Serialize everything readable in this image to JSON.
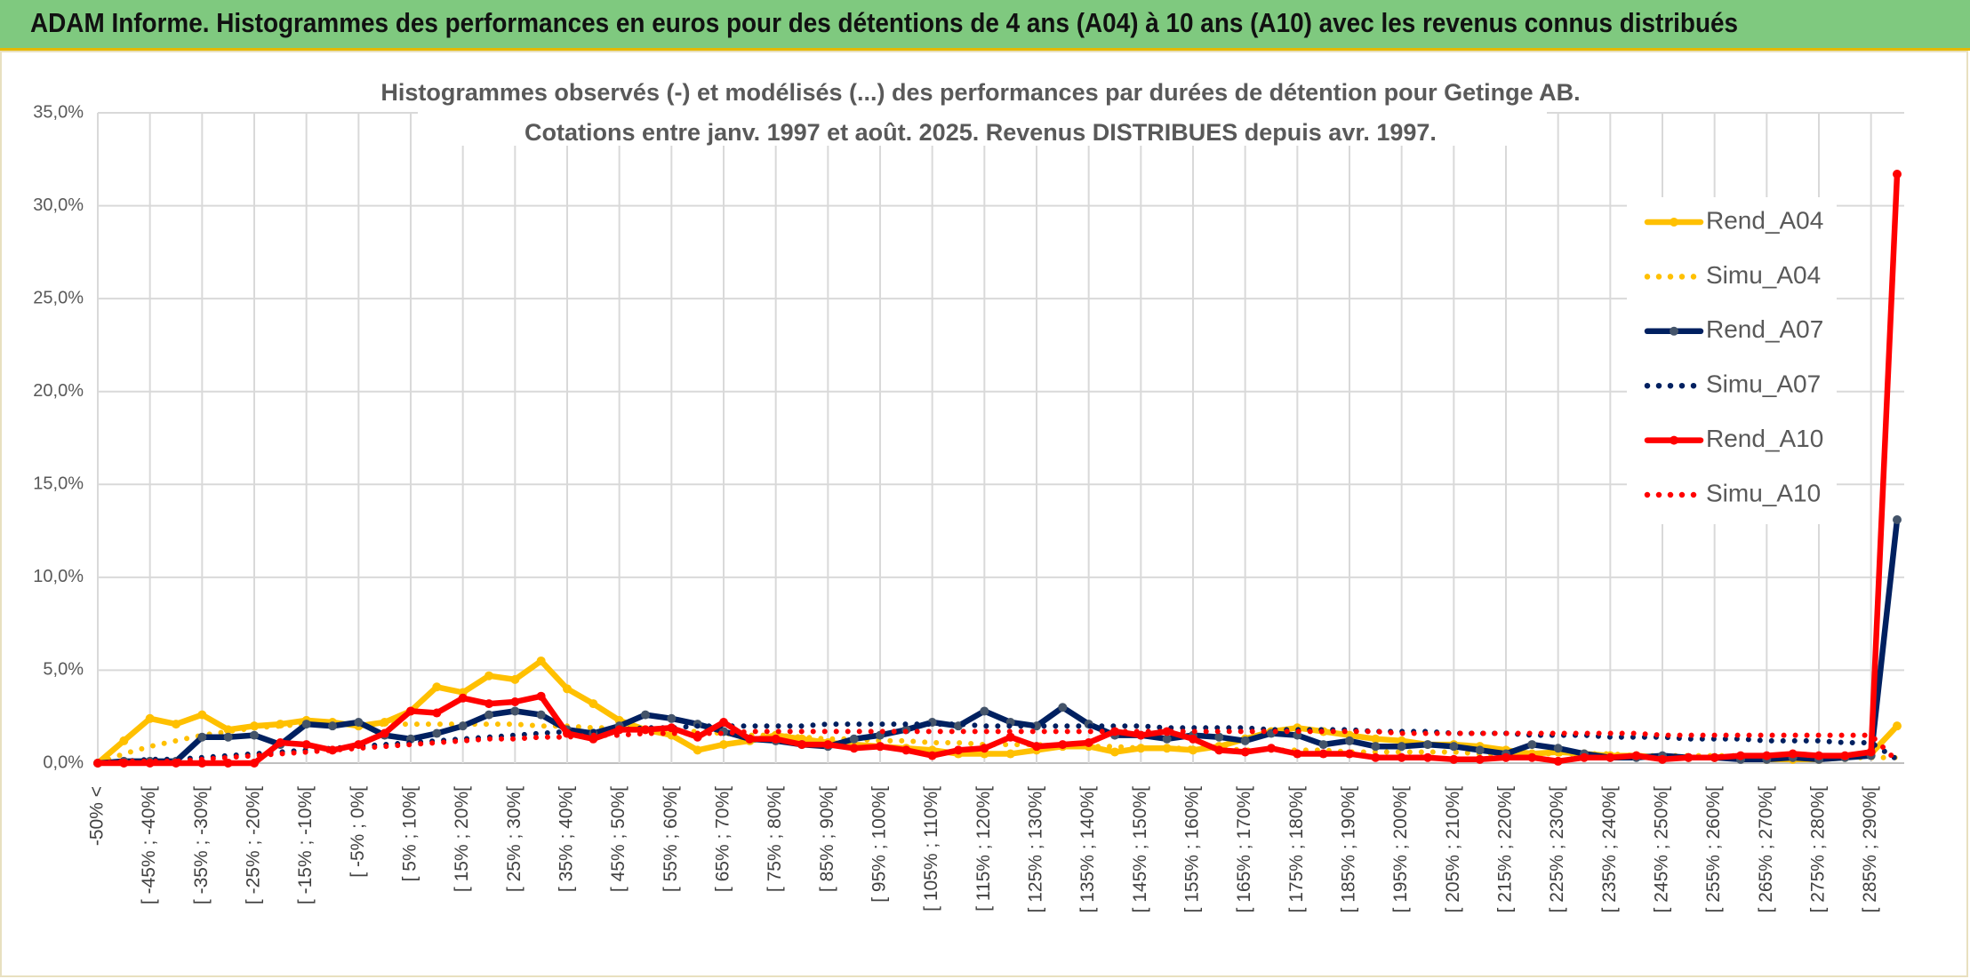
{
  "header": {
    "title": "ADAM Informe. Histogrammes des performances en euros pour des détentions de 4 ans (A04) à 10 ans (A10) avec les revenus connus distribués"
  },
  "chart_data": {
    "type": "line",
    "title": "Histogrammes observés (-) et modélisés (...) des performances par durées de détention pour Getinge AB.",
    "subtitle": "Cotations entre janv. 1997 et août. 2025. Revenus DISTRIBUES depuis avr. 1997.",
    "categories": [
      "-50% <",
      null,
      "[ -45% ; -40%[",
      null,
      "[ -35% ; -30%[",
      null,
      "[ -25% ; -20%[",
      null,
      "[ -15% ; -10%[",
      null,
      "[ -5% ; 0%[",
      null,
      "[ 5% ; 10%[",
      null,
      "[ 15% ; 20%[",
      null,
      "[ 25% ; 30%[",
      null,
      "[ 35% ; 40%[",
      null,
      "[ 45% ; 50%[",
      null,
      "[ 55% ; 60%[",
      null,
      "[ 65% ; 70%[",
      null,
      "[ 75% ; 80%[",
      null,
      "[ 85% ; 90%[",
      null,
      "[ 95% ; 100%[",
      null,
      "[ 105% ; 110%[",
      null,
      "[ 115% ; 120%[",
      null,
      "[ 125% ; 130%[",
      null,
      "[ 135% ; 140%[",
      null,
      "[ 145% ; 150%[",
      null,
      "[ 155% ; 160%[",
      null,
      "[ 165% ; 170%[",
      null,
      "[ 175% ; 180%[",
      null,
      "[ 185% ; 190%[",
      null,
      "[ 195% ; 200%[",
      null,
      "[ 205% ; 210%[",
      null,
      "[ 215% ; 220%[",
      null,
      "[ 225% ; 230%[",
      null,
      "[ 235% ; 240%[",
      null,
      "[ 245% ; 250%[",
      null,
      "[ 255% ; 260%[",
      null,
      "[ 265% ; 270%[",
      null,
      "[ 275% ; 280%[",
      null,
      "[ 285% ; 290%[",
      null
    ],
    "ylim": [
      0,
      35
    ],
    "yticks": [
      {
        "value": 0,
        "label": "0,0%"
      },
      {
        "value": 5,
        "label": "5,0%"
      },
      {
        "value": 10,
        "label": "10,0%"
      },
      {
        "value": 15,
        "label": "15,0%"
      },
      {
        "value": 20,
        "label": "20,0%"
      },
      {
        "value": 25,
        "label": "25,0%"
      },
      {
        "value": 30,
        "label": "30,0%"
      },
      {
        "value": 35,
        "label": "35,0%"
      }
    ],
    "grid": true,
    "legend": "right",
    "series": [
      {
        "name": "Rend_A04",
        "color": "#FFC000",
        "marker_color": "#FFC000",
        "style": "solid",
        "values": [
          0,
          1.2,
          2.4,
          2.1,
          2.6,
          1.8,
          2.0,
          2.1,
          2.3,
          2.2,
          2.0,
          2.2,
          2.8,
          4.1,
          3.8,
          4.7,
          4.5,
          5.5,
          4.0,
          3.2,
          2.3,
          1.8,
          1.5,
          0.7,
          1.0,
          1.2,
          1.5,
          1.3,
          1.1,
          1.0,
          0.9,
          0.8,
          0.7,
          0.5,
          0.5,
          0.5,
          0.7,
          0.9,
          0.9,
          0.6,
          0.8,
          0.8,
          0.7,
          0.9,
          1.3,
          1.7,
          1.9,
          1.7,
          1.5,
          1.3,
          1.2,
          1.0,
          1.0,
          0.9,
          0.7,
          0.5,
          0.6,
          0.5,
          0.4,
          0.4,
          0.3,
          0.3,
          0.3,
          0.3,
          0.2,
          0.2,
          0.2,
          0.3,
          0.5,
          2.0
        ]
      },
      {
        "name": "Simu_A04",
        "color": "#FFC000",
        "style": "dotted",
        "values": [
          0,
          0.5,
          0.9,
          1.2,
          1.5,
          1.7,
          1.9,
          2.0,
          2.1,
          2.1,
          2.1,
          2.1,
          2.1,
          2.1,
          2.1,
          2.1,
          2.1,
          2.0,
          2.0,
          1.9,
          1.9,
          1.8,
          1.7,
          1.7,
          1.6,
          1.5,
          1.5,
          1.4,
          1.3,
          1.3,
          1.2,
          1.2,
          1.1,
          1.1,
          1.0,
          1.0,
          1.0,
          0.9,
          0.9,
          0.9,
          0.8,
          0.8,
          0.8,
          0.8,
          0.7,
          0.7,
          0.7,
          0.7,
          0.6,
          0.6,
          0.6,
          0.6,
          0.6,
          0.5,
          0.5,
          0.5,
          0.5,
          0.5,
          0.5,
          0.4,
          0.4,
          0.4,
          0.4,
          0.4,
          0.4,
          0.4,
          0.3,
          0.3,
          0.3,
          0.3
        ]
      },
      {
        "name": "Rend_A07",
        "color": "#002060",
        "marker_color": "#44546A",
        "style": "solid",
        "values": [
          0,
          0.1,
          0.1,
          0.1,
          1.4,
          1.4,
          1.5,
          1.0,
          2.1,
          2.0,
          2.2,
          1.5,
          1.3,
          1.6,
          2.0,
          2.6,
          2.8,
          2.6,
          1.8,
          1.6,
          2.0,
          2.6,
          2.4,
          2.1,
          1.7,
          1.3,
          1.2,
          1.0,
          0.9,
          1.3,
          1.5,
          1.8,
          2.2,
          2.0,
          2.8,
          2.2,
          2.0,
          3.0,
          2.1,
          1.5,
          1.5,
          1.3,
          1.5,
          1.4,
          1.2,
          1.6,
          1.5,
          1.0,
          1.2,
          0.9,
          0.9,
          1.0,
          0.9,
          0.7,
          0.5,
          1.0,
          0.8,
          0.5,
          0.3,
          0.3,
          0.4,
          0.3,
          0.3,
          0.2,
          0.2,
          0.3,
          0.2,
          0.3,
          0.4,
          13.1
        ]
      },
      {
        "name": "Simu_A07",
        "color": "#002060",
        "style": "dotted",
        "values": [
          0,
          0.1,
          0.2,
          0.2,
          0.3,
          0.4,
          0.5,
          0.6,
          0.7,
          0.8,
          0.9,
          1.0,
          1.1,
          1.2,
          1.3,
          1.4,
          1.5,
          1.6,
          1.7,
          1.7,
          1.8,
          1.9,
          1.9,
          2.0,
          2.0,
          2.0,
          2.0,
          2.0,
          2.1,
          2.1,
          2.1,
          2.1,
          2.1,
          2.1,
          2.0,
          2.0,
          2.0,
          2.0,
          2.0,
          2.0,
          2.0,
          1.9,
          1.9,
          1.9,
          1.9,
          1.8,
          1.8,
          1.8,
          1.8,
          1.7,
          1.7,
          1.7,
          1.6,
          1.6,
          1.6,
          1.5,
          1.5,
          1.5,
          1.4,
          1.4,
          1.4,
          1.3,
          1.3,
          1.3,
          1.2,
          1.2,
          1.2,
          1.1,
          1.1,
          0.2
        ]
      },
      {
        "name": "Rend_A10",
        "color": "#FF0000",
        "marker_color": "#FF0000",
        "style": "solid",
        "values": [
          0,
          0,
          0,
          0,
          0,
          0,
          0,
          1.1,
          1.0,
          0.7,
          1.0,
          1.6,
          2.8,
          2.7,
          3.5,
          3.2,
          3.3,
          3.6,
          1.6,
          1.3,
          1.8,
          1.8,
          1.9,
          1.4,
          2.2,
          1.3,
          1.3,
          1.0,
          1.0,
          0.8,
          0.9,
          0.7,
          0.4,
          0.7,
          0.8,
          1.4,
          0.9,
          1.0,
          1.1,
          1.7,
          1.5,
          1.7,
          1.3,
          0.7,
          0.6,
          0.8,
          0.5,
          0.5,
          0.5,
          0.3,
          0.3,
          0.3,
          0.2,
          0.2,
          0.3,
          0.3,
          0.1,
          0.3,
          0.3,
          0.4,
          0.2,
          0.3,
          0.3,
          0.4,
          0.4,
          0.5,
          0.4,
          0.4,
          0.6,
          31.7
        ]
      },
      {
        "name": "Simu_A10",
        "color": "#FF0000",
        "style": "dotted",
        "values": [
          0,
          0.1,
          0.1,
          0.1,
          0.2,
          0.3,
          0.4,
          0.5,
          0.6,
          0.7,
          0.8,
          0.9,
          1.0,
          1.1,
          1.2,
          1.3,
          1.3,
          1.4,
          1.4,
          1.5,
          1.5,
          1.6,
          1.6,
          1.6,
          1.6,
          1.7,
          1.7,
          1.7,
          1.7,
          1.7,
          1.7,
          1.7,
          1.7,
          1.7,
          1.7,
          1.7,
          1.7,
          1.7,
          1.7,
          1.7,
          1.7,
          1.7,
          1.7,
          1.7,
          1.7,
          1.7,
          1.7,
          1.7,
          1.7,
          1.7,
          1.6,
          1.6,
          1.6,
          1.6,
          1.6,
          1.6,
          1.6,
          1.6,
          1.6,
          1.6,
          1.5,
          1.5,
          1.5,
          1.5,
          1.5,
          1.5,
          1.5,
          1.5,
          1.5,
          0.1
        ]
      }
    ]
  }
}
